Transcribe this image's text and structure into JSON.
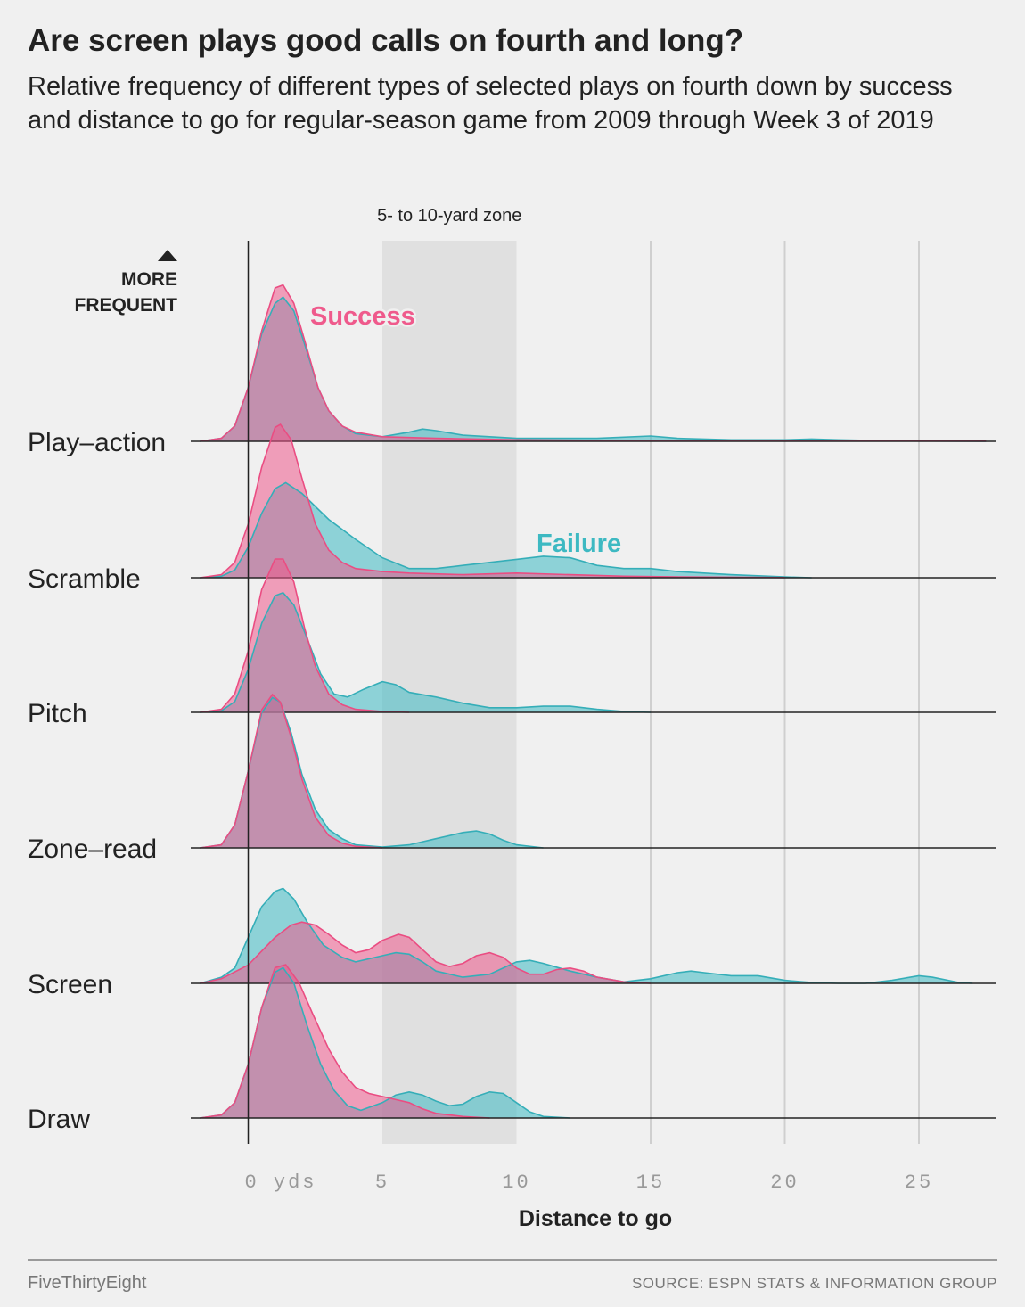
{
  "header": {
    "title": "Are screen plays good calls on fourth and long?",
    "subtitle": "Relative frequency of different types of selected plays on fourth down by success and distance to go for regular-season game from 2009 through Week 3 of 2019"
  },
  "footer": {
    "brand": "FiveThirtyEight",
    "source": "SOURCE: ESPN STATS & INFORMATION GROUP"
  },
  "colors": {
    "success": "#ef5a8c",
    "failure": "#3db9c2",
    "overlap": "#c48aa6",
    "background": "#f0f0f0",
    "zone": "#e0e0e0"
  },
  "chart_data": {
    "type": "area",
    "subtype": "ridgeline density",
    "xlabel": "Distance to go",
    "x_ticks": [
      "0 yds",
      "5",
      "10",
      "15",
      "20",
      "25"
    ],
    "xlim": [
      -2,
      27.5
    ],
    "highlight_band": {
      "label": "5- to 10-yard zone",
      "x": [
        5,
        10
      ]
    },
    "frequency_label": "MORE FREQUENT",
    "series_labels": [
      {
        "name": "Success",
        "color": "#ef5a8c"
      },
      {
        "name": "Failure",
        "color": "#3db9c2"
      }
    ],
    "categories": [
      "Play–action",
      "Scramble",
      "Pitch",
      "Zone–read",
      "Screen",
      "Draw"
    ],
    "rows": [
      {
        "category": "Play–action",
        "success": [
          [
            -1.8,
            0
          ],
          [
            -1,
            0.02
          ],
          [
            -0.5,
            0.1
          ],
          [
            0,
            0.35
          ],
          [
            0.5,
            0.72
          ],
          [
            1,
            1.0
          ],
          [
            1.3,
            1.02
          ],
          [
            1.7,
            0.9
          ],
          [
            2.2,
            0.6
          ],
          [
            2.6,
            0.35
          ],
          [
            3,
            0.2
          ],
          [
            3.5,
            0.1
          ],
          [
            4,
            0.06
          ],
          [
            5,
            0.03
          ],
          [
            7,
            0.02
          ],
          [
            10,
            0.01
          ],
          [
            14,
            0.005
          ],
          [
            20,
            0.003
          ],
          [
            27.5,
            0.001
          ]
        ],
        "failure": [
          [
            -1.8,
            0
          ],
          [
            -1,
            0.02
          ],
          [
            -0.5,
            0.1
          ],
          [
            0,
            0.35
          ],
          [
            0.5,
            0.7
          ],
          [
            1,
            0.9
          ],
          [
            1.3,
            0.94
          ],
          [
            1.7,
            0.85
          ],
          [
            2.2,
            0.58
          ],
          [
            2.6,
            0.35
          ],
          [
            3,
            0.2
          ],
          [
            3.5,
            0.1
          ],
          [
            4,
            0.05
          ],
          [
            5,
            0.03
          ],
          [
            6,
            0.06
          ],
          [
            6.5,
            0.08
          ],
          [
            7,
            0.07
          ],
          [
            8,
            0.04
          ],
          [
            10,
            0.02
          ],
          [
            13,
            0.02
          ],
          [
            15,
            0.035
          ],
          [
            16,
            0.02
          ],
          [
            18,
            0.01
          ],
          [
            20,
            0.01
          ],
          [
            21,
            0.015
          ],
          [
            22,
            0.01
          ],
          [
            24,
            0.003
          ],
          [
            27.5,
            0
          ]
        ]
      },
      {
        "category": "Scramble",
        "success": [
          [
            -1.8,
            0
          ],
          [
            -1,
            0.02
          ],
          [
            -0.5,
            0.1
          ],
          [
            0,
            0.35
          ],
          [
            0.5,
            0.72
          ],
          [
            1,
            0.98
          ],
          [
            1.2,
            1.0
          ],
          [
            1.6,
            0.9
          ],
          [
            2,
            0.65
          ],
          [
            2.5,
            0.35
          ],
          [
            3,
            0.18
          ],
          [
            3.5,
            0.1
          ],
          [
            4,
            0.06
          ],
          [
            5,
            0.04
          ],
          [
            6,
            0.03
          ],
          [
            8,
            0.02
          ],
          [
            10,
            0.03
          ],
          [
            12,
            0.02
          ],
          [
            14,
            0.01
          ],
          [
            16,
            0.005
          ],
          [
            20,
            0.001
          ]
        ],
        "failure": [
          [
            -1.8,
            0
          ],
          [
            -1,
            0.01
          ],
          [
            -0.5,
            0.05
          ],
          [
            0,
            0.2
          ],
          [
            0.5,
            0.42
          ],
          [
            1,
            0.58
          ],
          [
            1.4,
            0.62
          ],
          [
            2,
            0.55
          ],
          [
            3,
            0.38
          ],
          [
            4,
            0.25
          ],
          [
            5,
            0.13
          ],
          [
            6,
            0.06
          ],
          [
            7,
            0.06
          ],
          [
            8,
            0.08
          ],
          [
            9,
            0.1
          ],
          [
            10,
            0.12
          ],
          [
            11,
            0.14
          ],
          [
            12,
            0.13
          ],
          [
            13,
            0.08
          ],
          [
            14,
            0.06
          ],
          [
            15,
            0.06
          ],
          [
            16,
            0.04
          ],
          [
            18,
            0.02
          ],
          [
            20,
            0.005
          ],
          [
            21,
            0
          ]
        ]
      },
      {
        "category": "Pitch",
        "success": [
          [
            -1.8,
            0
          ],
          [
            -1,
            0.02
          ],
          [
            -0.5,
            0.12
          ],
          [
            0,
            0.4
          ],
          [
            0.5,
            0.8
          ],
          [
            1,
            1.0
          ],
          [
            1.3,
            1.0
          ],
          [
            1.7,
            0.85
          ],
          [
            2.1,
            0.55
          ],
          [
            2.5,
            0.3
          ],
          [
            3,
            0.12
          ],
          [
            3.5,
            0.05
          ],
          [
            4,
            0.02
          ],
          [
            5,
            0.005
          ],
          [
            6,
            0
          ]
        ],
        "failure": [
          [
            -1.8,
            0
          ],
          [
            -1,
            0.01
          ],
          [
            -0.5,
            0.07
          ],
          [
            0,
            0.28
          ],
          [
            0.5,
            0.58
          ],
          [
            1,
            0.76
          ],
          [
            1.3,
            0.78
          ],
          [
            1.7,
            0.7
          ],
          [
            2.2,
            0.48
          ],
          [
            2.7,
            0.25
          ],
          [
            3.2,
            0.12
          ],
          [
            3.7,
            0.1
          ],
          [
            4.3,
            0.15
          ],
          [
            5,
            0.2
          ],
          [
            5.5,
            0.18
          ],
          [
            6,
            0.13
          ],
          [
            7,
            0.1
          ],
          [
            8,
            0.06
          ],
          [
            9,
            0.03
          ],
          [
            10,
            0.03
          ],
          [
            11,
            0.04
          ],
          [
            12,
            0.04
          ],
          [
            13,
            0.02
          ],
          [
            14,
            0.005
          ],
          [
            15,
            0
          ]
        ]
      },
      {
        "category": "Zone–read",
        "success": [
          [
            -1.8,
            0
          ],
          [
            -1,
            0.02
          ],
          [
            -0.5,
            0.15
          ],
          [
            0,
            0.5
          ],
          [
            0.5,
            0.9
          ],
          [
            0.9,
            1.0
          ],
          [
            1.2,
            0.95
          ],
          [
            1.6,
            0.72
          ],
          [
            2,
            0.45
          ],
          [
            2.5,
            0.2
          ],
          [
            3,
            0.08
          ],
          [
            3.5,
            0.03
          ],
          [
            4,
            0.01
          ],
          [
            5,
            0
          ]
        ],
        "failure": [
          [
            -1.8,
            0
          ],
          [
            -1,
            0.02
          ],
          [
            -0.5,
            0.15
          ],
          [
            0,
            0.5
          ],
          [
            0.5,
            0.88
          ],
          [
            0.9,
            0.98
          ],
          [
            1.2,
            0.95
          ],
          [
            1.6,
            0.75
          ],
          [
            2,
            0.48
          ],
          [
            2.5,
            0.25
          ],
          [
            3,
            0.12
          ],
          [
            3.5,
            0.06
          ],
          [
            4,
            0.02
          ],
          [
            5,
            0.005
          ],
          [
            6,
            0.02
          ],
          [
            7,
            0.06
          ],
          [
            8,
            0.1
          ],
          [
            8.5,
            0.11
          ],
          [
            9,
            0.09
          ],
          [
            9.5,
            0.05
          ],
          [
            10,
            0.02
          ],
          [
            11,
            0
          ]
        ]
      },
      {
        "category": "Screen",
        "success": [
          [
            -1.8,
            0
          ],
          [
            -1,
            0.03
          ],
          [
            0,
            0.12
          ],
          [
            1,
            0.3
          ],
          [
            1.6,
            0.38
          ],
          [
            2,
            0.4
          ],
          [
            2.5,
            0.38
          ],
          [
            3,
            0.32
          ],
          [
            3.5,
            0.25
          ],
          [
            4,
            0.2
          ],
          [
            4.5,
            0.22
          ],
          [
            5,
            0.28
          ],
          [
            5.6,
            0.32
          ],
          [
            6,
            0.3
          ],
          [
            6.5,
            0.22
          ],
          [
            7,
            0.14
          ],
          [
            7.5,
            0.11
          ],
          [
            8,
            0.13
          ],
          [
            8.5,
            0.18
          ],
          [
            9,
            0.2
          ],
          [
            9.5,
            0.17
          ],
          [
            10,
            0.1
          ],
          [
            10.5,
            0.06
          ],
          [
            11,
            0.06
          ],
          [
            11.5,
            0.09
          ],
          [
            12,
            0.1
          ],
          [
            12.5,
            0.08
          ],
          [
            13,
            0.04
          ],
          [
            14,
            0.01
          ],
          [
            15,
            0
          ]
        ],
        "failure": [
          [
            -1.8,
            0
          ],
          [
            -1,
            0.04
          ],
          [
            -0.5,
            0.1
          ],
          [
            0,
            0.3
          ],
          [
            0.5,
            0.5
          ],
          [
            1,
            0.6
          ],
          [
            1.3,
            0.62
          ],
          [
            1.7,
            0.55
          ],
          [
            2.2,
            0.4
          ],
          [
            2.8,
            0.25
          ],
          [
            3.5,
            0.17
          ],
          [
            4,
            0.14
          ],
          [
            5,
            0.18
          ],
          [
            5.5,
            0.2
          ],
          [
            6,
            0.19
          ],
          [
            6.5,
            0.14
          ],
          [
            7,
            0.08
          ],
          [
            8,
            0.04
          ],
          [
            9,
            0.06
          ],
          [
            10,
            0.14
          ],
          [
            10.5,
            0.15
          ],
          [
            11,
            0.13
          ],
          [
            12,
            0.08
          ],
          [
            13,
            0.04
          ],
          [
            14,
            0.01
          ],
          [
            15,
            0.03
          ],
          [
            16,
            0.07
          ],
          [
            16.5,
            0.08
          ],
          [
            17,
            0.07
          ],
          [
            18,
            0.05
          ],
          [
            19,
            0.05
          ],
          [
            20,
            0.02
          ],
          [
            21,
            0.005
          ],
          [
            22,
            0
          ],
          [
            23,
            0
          ],
          [
            24,
            0.02
          ],
          [
            25,
            0.05
          ],
          [
            25.5,
            0.04
          ],
          [
            26.5,
            0.005
          ],
          [
            27,
            0
          ]
        ]
      },
      {
        "category": "Draw",
        "success": [
          [
            -1.8,
            0
          ],
          [
            -1,
            0.02
          ],
          [
            -0.5,
            0.1
          ],
          [
            0,
            0.35
          ],
          [
            0.5,
            0.72
          ],
          [
            1,
            0.98
          ],
          [
            1.4,
            1.0
          ],
          [
            1.9,
            0.88
          ],
          [
            2.4,
            0.68
          ],
          [
            3,
            0.45
          ],
          [
            3.5,
            0.3
          ],
          [
            4,
            0.2
          ],
          [
            4.5,
            0.16
          ],
          [
            5,
            0.14
          ],
          [
            5.5,
            0.12
          ],
          [
            6,
            0.1
          ],
          [
            6.5,
            0.06
          ],
          [
            7,
            0.03
          ],
          [
            8,
            0.01
          ],
          [
            9,
            0
          ]
        ],
        "failure": [
          [
            -1.8,
            0
          ],
          [
            -1,
            0.02
          ],
          [
            -0.5,
            0.1
          ],
          [
            0,
            0.35
          ],
          [
            0.5,
            0.72
          ],
          [
            1,
            0.95
          ],
          [
            1.3,
            0.98
          ],
          [
            1.7,
            0.88
          ],
          [
            2.2,
            0.6
          ],
          [
            2.7,
            0.35
          ],
          [
            3.2,
            0.18
          ],
          [
            3.7,
            0.08
          ],
          [
            4.2,
            0.05
          ],
          [
            5,
            0.1
          ],
          [
            5.5,
            0.15
          ],
          [
            6,
            0.17
          ],
          [
            6.5,
            0.15
          ],
          [
            7,
            0.11
          ],
          [
            7.5,
            0.08
          ],
          [
            8,
            0.09
          ],
          [
            8.5,
            0.14
          ],
          [
            9,
            0.17
          ],
          [
            9.5,
            0.16
          ],
          [
            10,
            0.1
          ],
          [
            10.5,
            0.04
          ],
          [
            11,
            0.01
          ],
          [
            12,
            0
          ]
        ]
      }
    ]
  }
}
